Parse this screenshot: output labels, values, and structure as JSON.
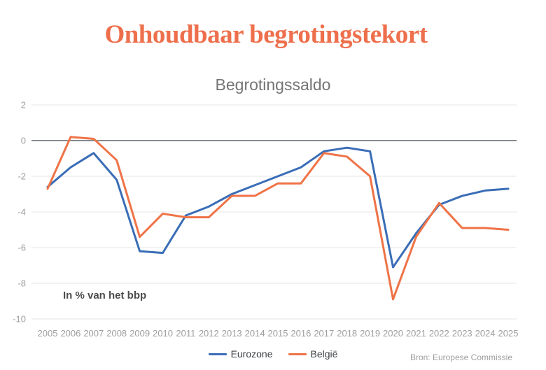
{
  "page": {
    "title": "Onhoudbaar begrotingstekort",
    "source": "Bron: Europese Commissie"
  },
  "chart_data": {
    "type": "line",
    "title": "Begrotingssaldo",
    "annotation": "In % van het bbp",
    "xlabel": "",
    "ylabel": "In % van het bbp",
    "x": [
      "2005",
      "2006",
      "2007",
      "2008",
      "2009",
      "2010",
      "2011",
      "2012",
      "2013",
      "2014",
      "2015",
      "2016",
      "2017",
      "2018",
      "2019",
      "2020",
      "2021",
      "2022",
      "2023",
      "2024",
      "2025"
    ],
    "series": [
      {
        "name": "Eurozone",
        "color": "#3a6db6",
        "values": [
          -2.6,
          -1.5,
          -0.7,
          -2.2,
          -6.2,
          -6.3,
          -4.2,
          -3.7,
          -3.0,
          -2.5,
          -2.0,
          -1.5,
          -0.6,
          -0.4,
          -0.6,
          -7.1,
          -5.2,
          -3.6,
          -3.1,
          -2.8,
          -2.7
        ]
      },
      {
        "name": "België",
        "color": "#ef7347",
        "values": [
          -2.7,
          0.2,
          0.1,
          -1.1,
          -5.4,
          -4.1,
          -4.3,
          -4.3,
          -3.1,
          -3.1,
          -2.4,
          -2.4,
          -0.7,
          -0.9,
          -2.0,
          -8.9,
          -5.4,
          -3.5,
          -4.9,
          -4.9,
          -5.0
        ]
      }
    ],
    "ylim": [
      -10,
      2
    ],
    "yticks": [
      2,
      0,
      -2,
      -4,
      -6,
      -8,
      -10
    ],
    "grid": true,
    "zero_line": true,
    "legend_position": "bottom",
    "colors": {
      "title": "#ee6f4c",
      "subtitle": "#757575",
      "axis_labels": "#9e9e9e",
      "gridline": "#e5e5e5",
      "zero_line": "#5f6368",
      "annotation": "#4c4c4c",
      "source": "#9e9e9e"
    }
  }
}
